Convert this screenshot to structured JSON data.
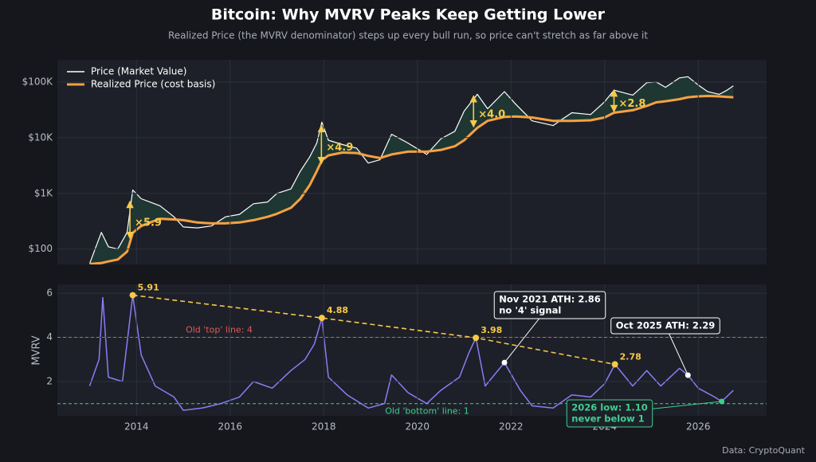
{
  "chart_data": [
    {
      "type": "line",
      "title": "Bitcoin: Why MVRV Peaks Keep Getting Lower",
      "subtitle": "Realized Price (the MVRV denominator) steps up every bull run, so price can't stretch as far above it",
      "log_y": true,
      "grid": true,
      "legend": "upper left",
      "fill_between": "#1f3a33",
      "xlim": [
        2012.31,
        2027.46
      ],
      "ylim": [
        53,
        250000
      ],
      "yticks": [
        {
          "value": 100,
          "label": "$100"
        },
        {
          "value": 1000,
          "label": "$1K"
        },
        {
          "value": 10000,
          "label": "$10K"
        },
        {
          "value": 100000,
          "label": "$100K"
        }
      ],
      "x": [
        2013.0,
        2013.25,
        2013.4,
        2013.6,
        2013.8,
        2013.92,
        2014.1,
        2014.5,
        2014.8,
        2015.0,
        2015.3,
        2015.6,
        2015.9,
        2016.2,
        2016.5,
        2016.8,
        2017.0,
        2017.3,
        2017.5,
        2017.7,
        2017.85,
        2017.96,
        2018.1,
        2018.4,
        2018.7,
        2018.95,
        2019.2,
        2019.45,
        2019.8,
        2020.2,
        2020.5,
        2020.8,
        2021.0,
        2021.28,
        2021.5,
        2021.86,
        2022.1,
        2022.45,
        2022.9,
        2023.3,
        2023.7,
        2024.0,
        2024.2,
        2024.6,
        2024.9,
        2025.1,
        2025.3,
        2025.6,
        2025.78,
        2026.0,
        2026.2,
        2026.45,
        2026.6,
        2026.75
      ],
      "series": [
        {
          "name": "Price (Market Value)",
          "color": "#ffffff",
          "values": [
            55,
            200,
            110,
            100,
            200,
            1150,
            800,
            600,
            380,
            250,
            240,
            260,
            380,
            420,
            650,
            700,
            1000,
            1200,
            2500,
            4500,
            8000,
            19000,
            9000,
            7500,
            6500,
            3500,
            4000,
            11500,
            8000,
            5000,
            9500,
            13000,
            30000,
            60000,
            33000,
            67000,
            40000,
            20000,
            16500,
            28000,
            26000,
            44000,
            71000,
            58000,
            97000,
            100000,
            80000,
            118000,
            124000,
            88000,
            67000,
            60000,
            70000,
            85000
          ]
        },
        {
          "name": "Realized Price (cost basis)",
          "color": "#f5a142",
          "values": [
            54,
            56,
            60,
            65,
            90,
            195,
            260,
            350,
            340,
            330,
            300,
            290,
            290,
            300,
            330,
            380,
            430,
            550,
            800,
            1400,
            2500,
            3900,
            4800,
            5400,
            5300,
            4700,
            4300,
            5000,
            5600,
            5600,
            6000,
            7000,
            9000,
            15000,
            20000,
            23500,
            24000,
            23000,
            20000,
            20000,
            20500,
            23000,
            28000,
            31000,
            37000,
            43000,
            45000,
            49000,
            53000,
            55000,
            56000,
            55000,
            54000,
            53000
          ]
        }
      ],
      "multipliers": [
        {
          "x": 2013.86,
          "from": 700,
          "to": 160,
          "label": "×5.9"
        },
        {
          "x": 2017.95,
          "from": 16000,
          "to": 3500,
          "label": "×4.9"
        },
        {
          "x": 2021.2,
          "from": 55000,
          "to": 16000,
          "label": "×4.0"
        },
        {
          "x": 2024.2,
          "from": 70000,
          "to": 30000,
          "label": "×2.8"
        }
      ]
    },
    {
      "type": "line",
      "y_label": "MVRV",
      "grid": true,
      "source": "Data: CryptoQuant",
      "xlim": [
        2012.31,
        2027.46
      ],
      "ylim": [
        0.45,
        6.4
      ],
      "xticks": [
        2014,
        2016,
        2018,
        2020,
        2022,
        2024,
        2026
      ],
      "yticks": [
        2,
        4,
        6
      ],
      "series": [
        {
          "name": "MVRV",
          "color": "#8b7cf6",
          "x": [
            2013.0,
            2013.2,
            2013.28,
            2013.4,
            2013.7,
            2013.92,
            2014.1,
            2014.4,
            2014.8,
            2015.0,
            2015.4,
            2015.8,
            2016.2,
            2016.5,
            2016.9,
            2017.3,
            2017.6,
            2017.8,
            2017.96,
            2018.1,
            2018.5,
            2018.95,
            2019.3,
            2019.45,
            2019.8,
            2020.2,
            2020.5,
            2020.9,
            2021.1,
            2021.25,
            2021.45,
            2021.86,
            2022.2,
            2022.45,
            2022.9,
            2023.3,
            2023.7,
            2024.0,
            2024.22,
            2024.6,
            2024.9,
            2025.2,
            2025.6,
            2025.78,
            2026.0,
            2026.35,
            2026.5,
            2026.75
          ],
          "values": [
            1.8,
            3,
            5.8,
            2.2,
            2.0,
            5.91,
            3.2,
            1.8,
            1.3,
            0.7,
            0.8,
            1.0,
            1.3,
            2.0,
            1.7,
            2.5,
            3.0,
            3.7,
            4.88,
            2.2,
            1.4,
            0.8,
            1.0,
            2.3,
            1.5,
            1.0,
            1.6,
            2.2,
            3.3,
            3.98,
            1.8,
            2.86,
            1.6,
            0.9,
            0.8,
            1.4,
            1.3,
            1.9,
            2.78,
            1.8,
            2.5,
            1.8,
            2.6,
            2.29,
            1.7,
            1.3,
            1.1,
            1.6
          ]
        }
      ],
      "peaks": [
        {
          "x": 2013.92,
          "y": 5.91
        },
        {
          "x": 2017.96,
          "y": 4.88
        },
        {
          "x": 2021.25,
          "y": 3.98
        },
        {
          "x": 2024.22,
          "y": 2.78
        }
      ],
      "peak_color": "#f7c948",
      "ref_lines": [
        {
          "value": 4,
          "label": "Old 'top' line: 4",
          "color": "#e05a5a"
        },
        {
          "value": 1,
          "label": "Old 'bottom' line: 1",
          "color": "#3ecf8e"
        }
      ],
      "callouts": [
        {
          "x": 2021.86,
          "y": 2.86,
          "lines": [
            "Nov 2021 ATH: 2.86",
            "no '4' signal"
          ],
          "color": "#ffffff"
        },
        {
          "x": 2025.78,
          "y": 2.29,
          "lines": [
            "Oct 2025 ATH: 2.29"
          ],
          "color": "#ffffff"
        },
        {
          "x": 2026.5,
          "y": 1.1,
          "lines": [
            "2026 low: 1.10",
            "never below 1"
          ],
          "color": "#3ecf8e"
        }
      ]
    }
  ]
}
